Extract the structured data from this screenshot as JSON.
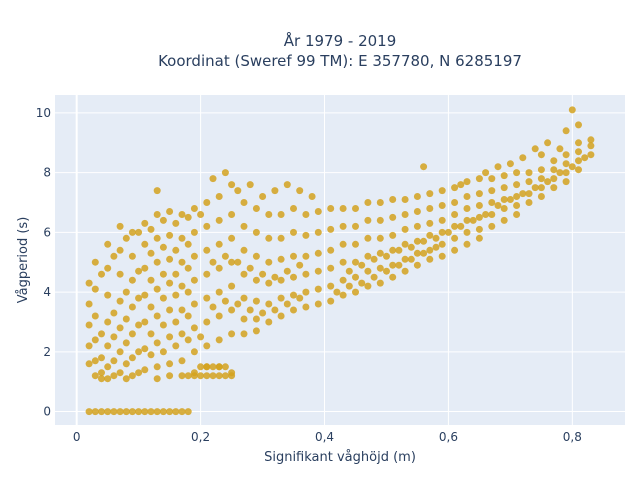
{
  "chart_data": {
    "type": "scatter",
    "title_line1": "År 1979 - 2019",
    "title_line2": "Koordinat (Sweref 99 TM): E 357780, N 6285197",
    "xlabel": "Signifikant våghöjd (m)",
    "ylabel": "Vågperiod (s)",
    "xlim": [
      -0.035,
      0.885
    ],
    "ylim": [
      -0.45,
      10.6
    ],
    "x_ticks": [
      {
        "value": 0,
        "label": "0"
      },
      {
        "value": 0.2,
        "label": "0,2"
      },
      {
        "value": 0.4,
        "label": "0,4"
      },
      {
        "value": 0.6,
        "label": "0,6"
      },
      {
        "value": 0.8,
        "label": "0,8"
      }
    ],
    "y_ticks": [
      {
        "value": 0,
        "label": "0"
      },
      {
        "value": 2,
        "label": "2"
      },
      {
        "value": 4,
        "label": "4"
      },
      {
        "value": 6,
        "label": "6"
      },
      {
        "value": 8,
        "label": "8"
      },
      {
        "value": 10,
        "label": "10"
      }
    ],
    "grid": true,
    "marker_color": "#d4a21f",
    "plot_background": "#e5ecf6",
    "points": [
      [
        0.02,
        0
      ],
      [
        0.03,
        0
      ],
      [
        0.04,
        0
      ],
      [
        0.05,
        0
      ],
      [
        0.06,
        0
      ],
      [
        0.07,
        0
      ],
      [
        0.08,
        0
      ],
      [
        0.09,
        0
      ],
      [
        0.1,
        0
      ],
      [
        0.11,
        0
      ],
      [
        0.12,
        0
      ],
      [
        0.13,
        0
      ],
      [
        0.14,
        0
      ],
      [
        0.15,
        0
      ],
      [
        0.16,
        0
      ],
      [
        0.17,
        0
      ],
      [
        0.18,
        0
      ],
      [
        0.02,
        4.3
      ],
      [
        0.02,
        3.6
      ],
      [
        0.02,
        2.9
      ],
      [
        0.02,
        2.2
      ],
      [
        0.02,
        1.6
      ],
      [
        0.03,
        5.0
      ],
      [
        0.03,
        4.1
      ],
      [
        0.03,
        3.2
      ],
      [
        0.03,
        2.4
      ],
      [
        0.03,
        1.7
      ],
      [
        0.03,
        1.2
      ],
      [
        0.05,
        5.6
      ],
      [
        0.05,
        4.8
      ],
      [
        0.05,
        3.9
      ],
      [
        0.05,
        3.0
      ],
      [
        0.05,
        2.2
      ],
      [
        0.05,
        1.5
      ],
      [
        0.05,
        1.1
      ],
      [
        0.07,
        6.2
      ],
      [
        0.07,
        5.4
      ],
      [
        0.07,
        4.6
      ],
      [
        0.07,
        3.7
      ],
      [
        0.07,
        2.8
      ],
      [
        0.07,
        2.0
      ],
      [
        0.07,
        1.3
      ],
      [
        0.09,
        6.0
      ],
      [
        0.09,
        5.2
      ],
      [
        0.09,
        4.4
      ],
      [
        0.09,
        3.5
      ],
      [
        0.09,
        2.6
      ],
      [
        0.09,
        1.8
      ],
      [
        0.09,
        1.2
      ],
      [
        0.11,
        6.3
      ],
      [
        0.11,
        5.6
      ],
      [
        0.11,
        4.8
      ],
      [
        0.11,
        3.9
      ],
      [
        0.11,
        3.0
      ],
      [
        0.11,
        2.1
      ],
      [
        0.11,
        1.4
      ],
      [
        0.13,
        6.6
      ],
      [
        0.13,
        5.8
      ],
      [
        0.13,
        5.0
      ],
      [
        0.13,
        4.1
      ],
      [
        0.13,
        3.2
      ],
      [
        0.13,
        2.3
      ],
      [
        0.13,
        1.5
      ],
      [
        0.13,
        1.1
      ],
      [
        0.15,
        6.7
      ],
      [
        0.15,
        5.9
      ],
      [
        0.15,
        5.1
      ],
      [
        0.15,
        4.3
      ],
      [
        0.15,
        3.4
      ],
      [
        0.15,
        2.5
      ],
      [
        0.15,
        1.6
      ],
      [
        0.15,
        1.2
      ],
      [
        0.17,
        6.6
      ],
      [
        0.17,
        5.8
      ],
      [
        0.17,
        5.0
      ],
      [
        0.17,
        4.2
      ],
      [
        0.17,
        3.4
      ],
      [
        0.17,
        2.6
      ],
      [
        0.17,
        1.7
      ],
      [
        0.17,
        1.2
      ],
      [
        0.19,
        6.8
      ],
      [
        0.19,
        6.0
      ],
      [
        0.19,
        5.2
      ],
      [
        0.19,
        4.4
      ],
      [
        0.19,
        3.6
      ],
      [
        0.19,
        2.8
      ],
      [
        0.19,
        2.0
      ],
      [
        0.19,
        1.3
      ],
      [
        0.21,
        7.0
      ],
      [
        0.21,
        6.2
      ],
      [
        0.21,
        5.4
      ],
      [
        0.21,
        4.6
      ],
      [
        0.21,
        3.8
      ],
      [
        0.21,
        3.0
      ],
      [
        0.21,
        2.2
      ],
      [
        0.21,
        1.5
      ],
      [
        0.23,
        7.2
      ],
      [
        0.23,
        6.4
      ],
      [
        0.23,
        5.6
      ],
      [
        0.23,
        4.8
      ],
      [
        0.23,
        4.0
      ],
      [
        0.23,
        3.2
      ],
      [
        0.23,
        2.4
      ],
      [
        0.23,
        1.5
      ],
      [
        0.25,
        7.6
      ],
      [
        0.25,
        6.6
      ],
      [
        0.25,
        5.8
      ],
      [
        0.25,
        5.0
      ],
      [
        0.25,
        4.2
      ],
      [
        0.25,
        3.4
      ],
      [
        0.25,
        2.6
      ],
      [
        0.25,
        1.3
      ],
      [
        0.27,
        7.0
      ],
      [
        0.27,
        6.2
      ],
      [
        0.27,
        5.4
      ],
      [
        0.27,
        4.6
      ],
      [
        0.27,
        3.8
      ],
      [
        0.27,
        3.1
      ],
      [
        0.27,
        2.6
      ],
      [
        0.29,
        6.8
      ],
      [
        0.29,
        6.0
      ],
      [
        0.29,
        5.2
      ],
      [
        0.29,
        4.4
      ],
      [
        0.29,
        3.7
      ],
      [
        0.29,
        3.1
      ],
      [
        0.29,
        2.7
      ],
      [
        0.31,
        6.6
      ],
      [
        0.31,
        5.8
      ],
      [
        0.31,
        5.0
      ],
      [
        0.31,
        4.3
      ],
      [
        0.31,
        3.6
      ],
      [
        0.31,
        3.0
      ],
      [
        0.33,
        6.6
      ],
      [
        0.33,
        5.8
      ],
      [
        0.33,
        5.1
      ],
      [
        0.33,
        4.4
      ],
      [
        0.33,
        3.8
      ],
      [
        0.33,
        3.2
      ],
      [
        0.35,
        6.8
      ],
      [
        0.35,
        6.0
      ],
      [
        0.35,
        5.2
      ],
      [
        0.35,
        4.5
      ],
      [
        0.35,
        3.9
      ],
      [
        0.35,
        3.4
      ],
      [
        0.37,
        6.6
      ],
      [
        0.37,
        5.9
      ],
      [
        0.37,
        5.2
      ],
      [
        0.37,
        4.6
      ],
      [
        0.37,
        4.0
      ],
      [
        0.37,
        3.5
      ],
      [
        0.39,
        6.7
      ],
      [
        0.39,
        6.0
      ],
      [
        0.39,
        5.3
      ],
      [
        0.39,
        4.7
      ],
      [
        0.39,
        4.1
      ],
      [
        0.39,
        3.6
      ],
      [
        0.41,
        6.8
      ],
      [
        0.41,
        6.1
      ],
      [
        0.41,
        5.4
      ],
      [
        0.41,
        4.8
      ],
      [
        0.41,
        4.2
      ],
      [
        0.41,
        3.7
      ],
      [
        0.43,
        6.8
      ],
      [
        0.43,
        6.2
      ],
      [
        0.43,
        5.6
      ],
      [
        0.43,
        5.0
      ],
      [
        0.43,
        4.4
      ],
      [
        0.43,
        3.9
      ],
      [
        0.45,
        6.8
      ],
      [
        0.45,
        6.2
      ],
      [
        0.45,
        5.6
      ],
      [
        0.45,
        5.0
      ],
      [
        0.45,
        4.5
      ],
      [
        0.45,
        4.0
      ],
      [
        0.47,
        7.0
      ],
      [
        0.47,
        6.4
      ],
      [
        0.47,
        5.8
      ],
      [
        0.47,
        5.2
      ],
      [
        0.47,
        4.7
      ],
      [
        0.47,
        4.2
      ],
      [
        0.49,
        7.0
      ],
      [
        0.49,
        6.4
      ],
      [
        0.49,
        5.8
      ],
      [
        0.49,
        5.3
      ],
      [
        0.49,
        4.8
      ],
      [
        0.49,
        4.3
      ],
      [
        0.51,
        7.1
      ],
      [
        0.51,
        6.5
      ],
      [
        0.51,
        5.9
      ],
      [
        0.51,
        5.4
      ],
      [
        0.51,
        4.9
      ],
      [
        0.51,
        4.5
      ],
      [
        0.53,
        7.1
      ],
      [
        0.53,
        6.6
      ],
      [
        0.53,
        6.1
      ],
      [
        0.53,
        5.6
      ],
      [
        0.53,
        5.1
      ],
      [
        0.53,
        4.7
      ],
      [
        0.55,
        7.2
      ],
      [
        0.55,
        6.7
      ],
      [
        0.55,
        6.2
      ],
      [
        0.55,
        5.7
      ],
      [
        0.55,
        5.3
      ],
      [
        0.55,
        4.9
      ],
      [
        0.57,
        7.3
      ],
      [
        0.57,
        6.8
      ],
      [
        0.57,
        6.3
      ],
      [
        0.57,
        5.9
      ],
      [
        0.57,
        5.4
      ],
      [
        0.57,
        5.1
      ],
      [
        0.59,
        7.4
      ],
      [
        0.59,
        6.9
      ],
      [
        0.59,
        6.4
      ],
      [
        0.59,
        6.0
      ],
      [
        0.59,
        5.6
      ],
      [
        0.59,
        5.2
      ],
      [
        0.61,
        7.5
      ],
      [
        0.61,
        7.0
      ],
      [
        0.61,
        6.6
      ],
      [
        0.61,
        6.2
      ],
      [
        0.61,
        5.8
      ],
      [
        0.61,
        5.4
      ],
      [
        0.63,
        7.7
      ],
      [
        0.63,
        7.2
      ],
      [
        0.63,
        6.8
      ],
      [
        0.63,
        6.4
      ],
      [
        0.63,
        6.0
      ],
      [
        0.63,
        5.6
      ],
      [
        0.65,
        7.8
      ],
      [
        0.65,
        7.3
      ],
      [
        0.65,
        6.9
      ],
      [
        0.65,
        6.5
      ],
      [
        0.65,
        6.1
      ],
      [
        0.65,
        5.8
      ],
      [
        0.67,
        7.8
      ],
      [
        0.67,
        7.4
      ],
      [
        0.67,
        7.0
      ],
      [
        0.67,
        6.6
      ],
      [
        0.67,
        6.2
      ],
      [
        0.69,
        7.9
      ],
      [
        0.69,
        7.5
      ],
      [
        0.69,
        7.1
      ],
      [
        0.69,
        6.8
      ],
      [
        0.69,
        6.4
      ],
      [
        0.71,
        8.0
      ],
      [
        0.71,
        7.6
      ],
      [
        0.71,
        7.2
      ],
      [
        0.71,
        6.9
      ],
      [
        0.71,
        6.6
      ],
      [
        0.73,
        8.0
      ],
      [
        0.73,
        7.7
      ],
      [
        0.73,
        7.3
      ],
      [
        0.73,
        7.0
      ],
      [
        0.75,
        8.1
      ],
      [
        0.75,
        7.8
      ],
      [
        0.75,
        7.5
      ],
      [
        0.75,
        7.2
      ],
      [
        0.77,
        8.4
      ],
      [
        0.77,
        8.1
      ],
      [
        0.77,
        7.8
      ],
      [
        0.77,
        7.5
      ],
      [
        0.79,
        8.6
      ],
      [
        0.79,
        8.3
      ],
      [
        0.79,
        8.0
      ],
      [
        0.79,
        7.7
      ],
      [
        0.81,
        9.0
      ],
      [
        0.81,
        8.7
      ],
      [
        0.81,
        8.4
      ],
      [
        0.81,
        8.1
      ],
      [
        0.83,
        9.1
      ],
      [
        0.83,
        8.9
      ],
      [
        0.83,
        8.6
      ],
      [
        0.8,
        10.1
      ],
      [
        0.79,
        9.4
      ],
      [
        0.81,
        9.6
      ],
      [
        0.78,
        8.8
      ],
      [
        0.75,
        8.6
      ],
      [
        0.72,
        8.5
      ],
      [
        0.76,
        9.0
      ],
      [
        0.56,
        8.2
      ],
      [
        0.62,
        7.6
      ],
      [
        0.66,
        8.0
      ],
      [
        0.68,
        8.2
      ],
      [
        0.7,
        8.3
      ],
      [
        0.74,
        8.8
      ],
      [
        0.13,
        7.4
      ],
      [
        0.22,
        7.8
      ],
      [
        0.24,
        8.0
      ],
      [
        0.26,
        7.4
      ],
      [
        0.28,
        7.6
      ],
      [
        0.3,
        7.2
      ],
      [
        0.32,
        7.4
      ],
      [
        0.34,
        7.6
      ],
      [
        0.36,
        7.4
      ],
      [
        0.38,
        7.2
      ],
      [
        0.2,
        1.5
      ],
      [
        0.21,
        1.5
      ],
      [
        0.22,
        1.5
      ],
      [
        0.23,
        1.5
      ],
      [
        0.24,
        1.5
      ],
      [
        0.25,
        1.2
      ],
      [
        0.18,
        1.2
      ],
      [
        0.19,
        1.2
      ],
      [
        0.2,
        1.2
      ],
      [
        0.21,
        1.2
      ],
      [
        0.22,
        1.2
      ],
      [
        0.23,
        1.2
      ],
      [
        0.24,
        1.2
      ],
      [
        0.04,
        4.6
      ],
      [
        0.06,
        5.2
      ],
      [
        0.08,
        5.8
      ],
      [
        0.1,
        6.0
      ],
      [
        0.12,
        6.1
      ],
      [
        0.14,
        6.4
      ],
      [
        0.16,
        6.3
      ],
      [
        0.18,
        6.5
      ],
      [
        0.2,
        6.6
      ],
      [
        0.04,
        2.6
      ],
      [
        0.06,
        3.3
      ],
      [
        0.08,
        4.0
      ],
      [
        0.1,
        4.7
      ],
      [
        0.12,
        5.3
      ],
      [
        0.14,
        5.5
      ],
      [
        0.16,
        5.4
      ],
      [
        0.18,
        5.6
      ],
      [
        0.04,
        1.8
      ],
      [
        0.06,
        2.5
      ],
      [
        0.08,
        3.1
      ],
      [
        0.1,
        3.8
      ],
      [
        0.12,
        4.4
      ],
      [
        0.14,
        4.6
      ],
      [
        0.16,
        4.6
      ],
      [
        0.18,
        4.8
      ],
      [
        0.04,
        1.3
      ],
      [
        0.06,
        1.7
      ],
      [
        0.08,
        2.3
      ],
      [
        0.1,
        2.9
      ],
      [
        0.12,
        3.5
      ],
      [
        0.14,
        3.8
      ],
      [
        0.16,
        3.9
      ],
      [
        0.18,
        4.0
      ],
      [
        0.04,
        1.1
      ],
      [
        0.06,
        1.2
      ],
      [
        0.08,
        1.6
      ],
      [
        0.1,
        2.0
      ],
      [
        0.12,
        2.6
      ],
      [
        0.14,
        2.9
      ],
      [
        0.16,
        3.0
      ],
      [
        0.18,
        3.2
      ],
      [
        0.08,
        1.1
      ],
      [
        0.1,
        1.3
      ],
      [
        0.12,
        1.9
      ],
      [
        0.14,
        2.0
      ],
      [
        0.16,
        2.2
      ],
      [
        0.18,
        2.4
      ],
      [
        0.2,
        2.5
      ],
      [
        0.22,
        5.0
      ],
      [
        0.24,
        5.2
      ],
      [
        0.26,
        5.0
      ],
      [
        0.28,
        4.8
      ],
      [
        0.3,
        4.6
      ],
      [
        0.32,
        4.5
      ],
      [
        0.34,
        4.7
      ],
      [
        0.36,
        4.9
      ],
      [
        0.22,
        3.5
      ],
      [
        0.24,
        3.7
      ],
      [
        0.26,
        3.6
      ],
      [
        0.28,
        3.4
      ],
      [
        0.3,
        3.3
      ],
      [
        0.32,
        3.4
      ],
      [
        0.34,
        3.6
      ],
      [
        0.36,
        3.8
      ],
      [
        0.44,
        4.7
      ],
      [
        0.46,
        4.9
      ],
      [
        0.48,
        5.1
      ],
      [
        0.5,
        5.2
      ],
      [
        0.52,
        5.4
      ],
      [
        0.54,
        5.5
      ],
      [
        0.56,
        5.7
      ],
      [
        0.58,
        5.8
      ],
      [
        0.6,
        6.0
      ],
      [
        0.62,
        6.2
      ],
      [
        0.64,
        6.4
      ],
      [
        0.66,
        6.6
      ],
      [
        0.68,
        6.9
      ],
      [
        0.7,
        7.1
      ],
      [
        0.72,
        7.3
      ],
      [
        0.74,
        7.5
      ],
      [
        0.76,
        7.7
      ],
      [
        0.78,
        8.0
      ],
      [
        0.8,
        8.2
      ],
      [
        0.82,
        8.5
      ],
      [
        0.42,
        4.0
      ],
      [
        0.44,
        4.2
      ],
      [
        0.46,
        4.3
      ],
      [
        0.48,
        4.5
      ],
      [
        0.5,
        4.7
      ],
      [
        0.52,
        4.9
      ],
      [
        0.54,
        5.1
      ],
      [
        0.56,
        5.3
      ],
      [
        0.58,
        5.5
      ]
    ]
  }
}
